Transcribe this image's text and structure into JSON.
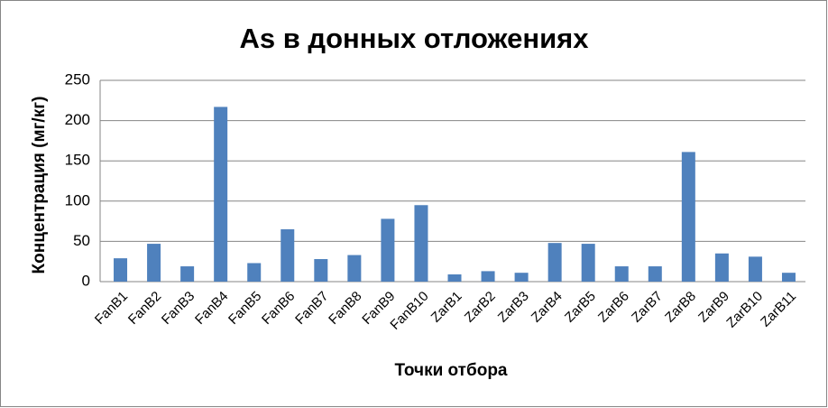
{
  "chart_data": {
    "type": "bar",
    "title": "As в донных отложениях",
    "x_label": "Точки отбора",
    "y_label": "Концентрация (мг/кг)",
    "categories": [
      "FanB1",
      "FanB2",
      "FanB3",
      "FanB4",
      "FanB5",
      "FanB6",
      "FanB7",
      "FanB8",
      "FanB9",
      "FanB10",
      "ZarB1",
      "ZarB2",
      "ZarB3",
      "ZarB4",
      "ZarB5",
      "ZarB6",
      "ZarB7",
      "ZarB8",
      "ZarB9",
      "ZarB10",
      "ZarB11"
    ],
    "values": [
      29,
      47,
      19,
      217,
      23,
      65,
      28,
      33,
      78,
      95,
      9,
      13,
      11,
      48,
      47,
      19,
      19,
      161,
      35,
      31,
      11
    ],
    "color": "#4f81bd",
    "ylim": [
      0,
      250
    ],
    "yticks": [
      0,
      50,
      100,
      150,
      200,
      250
    ],
    "grid": true
  }
}
